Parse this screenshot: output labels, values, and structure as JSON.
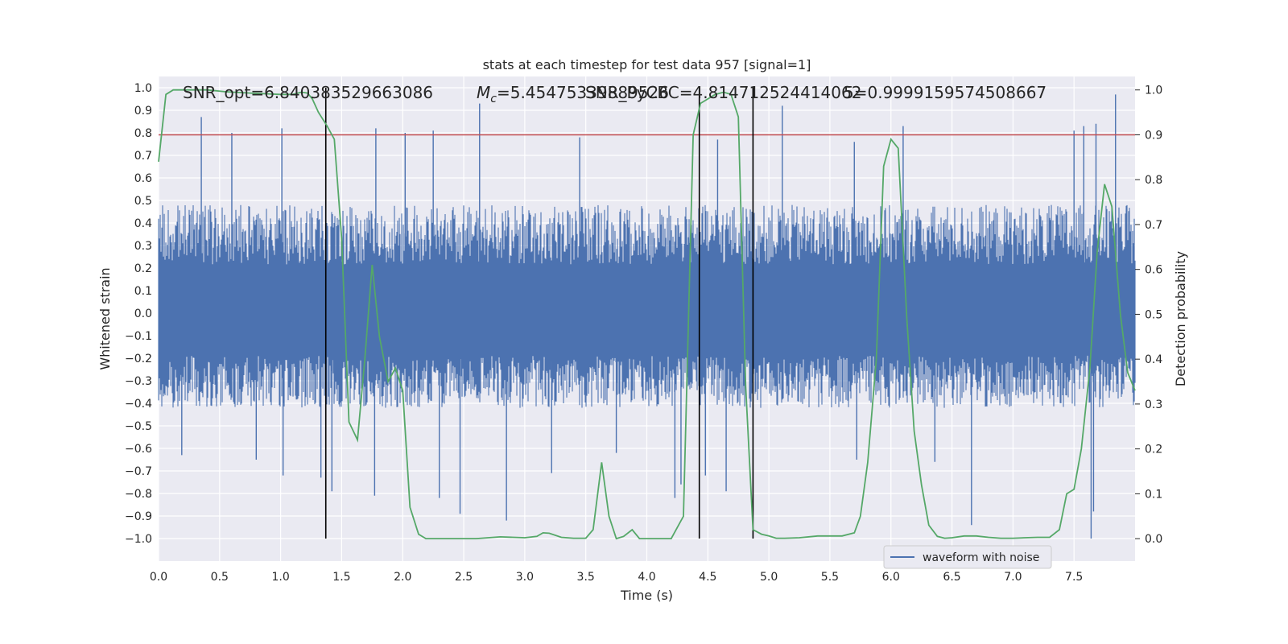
{
  "chart_data": {
    "type": "line",
    "title": "stats at each timestep for test data 957 [signal=1]",
    "xlabel": "Time (s)",
    "ylabel_left": "Whitened strain",
    "ylabel_right": "Detection probability",
    "xlim": [
      0.0,
      8.0
    ],
    "ylim_left": [
      -1.1,
      1.05
    ],
    "ylim_right": [
      -0.05,
      1.03
    ],
    "x_ticks": [
      "0.0",
      "0.5",
      "1.0",
      "1.5",
      "2.0",
      "2.5",
      "3.0",
      "3.5",
      "4.0",
      "4.5",
      "5.0",
      "5.5",
      "6.0",
      "6.5",
      "7.0",
      "7.5"
    ],
    "y_left_ticks": [
      "1.0",
      "0.9",
      "0.8",
      "0.7",
      "0.6",
      "0.5",
      "0.4",
      "0.3",
      "0.2",
      "0.1",
      "0.0",
      "-0.1",
      "-0.2",
      "-0.3",
      "-0.4",
      "-0.5",
      "-0.6",
      "-0.7",
      "-0.8",
      "-0.9",
      "-1.0"
    ],
    "y_right_ticks": [
      "1.0",
      "0.9",
      "0.8",
      "0.7",
      "0.6",
      "0.5",
      "0.4",
      "0.3",
      "0.2",
      "0.1",
      "0.0"
    ],
    "grid": true,
    "legend_position": "bottom-right",
    "annotations": {
      "snr_opt": "SNR_opt=6.840383529663086",
      "mc_prefix": "M",
      "mc_sub": "c",
      "mc_value": "=5.45475339889526",
      "snr_pycbc": "SNR_PyCBC=4.814712524414062",
      "p_value": "5=0.9999159574508667"
    },
    "event_markers_x": [
      1.37,
      4.43,
      4.87
    ],
    "threshold_probability": 0.9,
    "series": [
      {
        "name": "waveform with noise",
        "color": "#4c72b0",
        "kind": "noise",
        "typical_envelope": [
          -0.42,
          0.48
        ],
        "spikes": [
          [
            0.35,
            0.87
          ],
          [
            0.6,
            0.8
          ],
          [
            1.01,
            0.82
          ],
          [
            1.37,
            0.69
          ],
          [
            1.78,
            0.82
          ],
          [
            2.02,
            0.8
          ],
          [
            2.25,
            0.81
          ],
          [
            2.63,
            0.93
          ],
          [
            3.45,
            0.78
          ],
          [
            4.58,
            0.77
          ],
          [
            5.11,
            0.92
          ],
          [
            5.7,
            0.76
          ],
          [
            6.1,
            0.83
          ],
          [
            7.5,
            0.81
          ],
          [
            7.58,
            0.83
          ],
          [
            7.68,
            0.84
          ],
          [
            7.84,
            0.97
          ],
          [
            0.19,
            -0.63
          ],
          [
            0.8,
            -0.65
          ],
          [
            1.02,
            -0.72
          ],
          [
            1.33,
            -0.73
          ],
          [
            1.42,
            -0.79
          ],
          [
            1.77,
            -0.81
          ],
          [
            2.3,
            -0.82
          ],
          [
            2.47,
            -0.89
          ],
          [
            2.85,
            -0.92
          ],
          [
            3.22,
            -0.71
          ],
          [
            3.75,
            -0.62
          ],
          [
            4.23,
            -0.82
          ],
          [
            4.28,
            -0.76
          ],
          [
            4.48,
            -0.72
          ],
          [
            4.65,
            -0.79
          ],
          [
            5.72,
            -0.65
          ],
          [
            6.36,
            -0.66
          ],
          [
            6.66,
            -0.94
          ],
          [
            7.64,
            -1.0
          ],
          [
            7.66,
            -0.88
          ]
        ]
      },
      {
        "name": "",
        "color": "#55a868",
        "kind": "probability",
        "x": [
          0.0,
          0.06,
          0.12,
          0.25,
          0.4,
          0.55,
          0.75,
          1.0,
          1.1,
          1.17,
          1.22,
          1.26,
          1.31,
          1.38,
          1.44,
          1.5,
          1.56,
          1.63,
          1.69,
          1.75,
          1.81,
          1.88,
          1.94,
          2.0,
          2.06,
          2.13,
          2.19,
          2.25,
          2.4,
          2.6,
          2.8,
          3.0,
          3.1,
          3.15,
          3.2,
          3.3,
          3.4,
          3.5,
          3.56,
          3.63,
          3.69,
          3.75,
          3.81,
          3.88,
          3.94,
          4.0,
          4.06,
          4.13,
          4.2,
          4.3,
          4.38,
          4.44,
          4.5,
          4.56,
          4.63,
          4.69,
          4.75,
          4.81,
          4.87,
          4.94,
          5.0,
          5.06,
          5.13,
          5.25,
          5.4,
          5.6,
          5.7,
          5.75,
          5.81,
          5.88,
          5.94,
          6.0,
          6.06,
          6.13,
          6.19,
          6.25,
          6.31,
          6.38,
          6.44,
          6.5,
          6.6,
          6.7,
          6.8,
          6.9,
          7.0,
          7.1,
          7.2,
          7.3,
          7.38,
          7.44,
          7.5,
          7.56,
          7.63,
          7.69,
          7.75,
          7.81,
          7.88,
          7.94,
          8.0
        ],
        "y": [
          0.84,
          0.99,
          1.0,
          1.0,
          1.0,
          0.996,
          0.993,
          0.99,
          0.99,
          0.995,
          0.993,
          0.98,
          0.95,
          0.92,
          0.89,
          0.67,
          0.26,
          0.22,
          0.4,
          0.61,
          0.45,
          0.35,
          0.38,
          0.33,
          0.07,
          0.01,
          0.0,
          0.0,
          0.0,
          0.0,
          0.004,
          0.002,
          0.005,
          0.013,
          0.012,
          0.003,
          0.001,
          0.001,
          0.02,
          0.17,
          0.05,
          0.0,
          0.005,
          0.02,
          0.0,
          0.0,
          0.0,
          0.0,
          0.0,
          0.05,
          0.9,
          0.97,
          0.98,
          0.99,
          0.995,
          0.99,
          0.94,
          0.34,
          0.02,
          0.01,
          0.006,
          0.001,
          0.001,
          0.002,
          0.006,
          0.006,
          0.013,
          0.05,
          0.17,
          0.4,
          0.83,
          0.89,
          0.87,
          0.49,
          0.24,
          0.12,
          0.03,
          0.005,
          0.001,
          0.002,
          0.006,
          0.006,
          0.003,
          0.001,
          0.001,
          0.002,
          0.003,
          0.003,
          0.02,
          0.1,
          0.11,
          0.2,
          0.38,
          0.64,
          0.79,
          0.74,
          0.5,
          0.37,
          0.33
        ]
      }
    ]
  }
}
